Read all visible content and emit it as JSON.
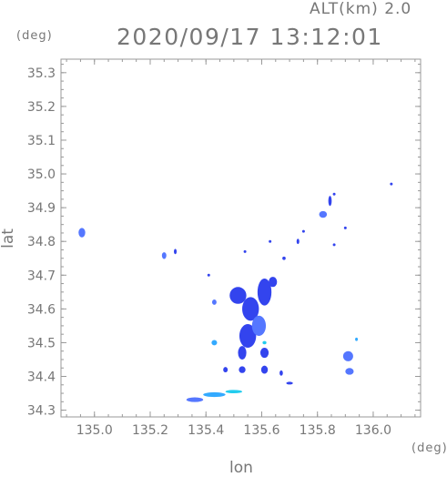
{
  "header": {
    "altitude_label": "ALT(km) 2.0",
    "lat_unit": "(deg)",
    "timestamp": "2020/09/17 13:12:01",
    "lon_unit": "(deg)"
  },
  "axes": {
    "xlabel": "lon",
    "ylabel": "lat",
    "xlim": [
      134.88,
      136.17
    ],
    "ylim": [
      34.28,
      35.34
    ],
    "x_ticks": [
      "135.0",
      "135.2",
      "135.4",
      "135.6",
      "135.8",
      "136.0"
    ],
    "y_ticks": [
      "34.3",
      "34.4",
      "34.5",
      "34.6",
      "34.7",
      "34.8",
      "34.9",
      "35.0",
      "35.1",
      "35.2",
      "35.3"
    ]
  },
  "colors": {
    "frame": "#999999",
    "echo_strong": "#3344ee",
    "echo_medium": "#5577ff",
    "echo_light": "#33aaff",
    "echo_cyan": "#22ccee"
  },
  "chart_data": {
    "type": "scatter",
    "title": "2020/09/17 13:12:01",
    "xlabel": "lon",
    "ylabel": "lat",
    "xlim": [
      134.88,
      136.17
    ],
    "ylim": [
      34.28,
      35.34
    ],
    "grid": false,
    "echo_cells": [
      {
        "lon": 134.955,
        "lat": 34.826,
        "rlon": 0.012,
        "rlat": 0.014,
        "level": "medium"
      },
      {
        "lon": 135.25,
        "lat": 34.758,
        "rlon": 0.008,
        "rlat": 0.01,
        "level": "medium"
      },
      {
        "lon": 135.29,
        "lat": 34.77,
        "rlon": 0.005,
        "rlat": 0.008,
        "level": "strong"
      },
      {
        "lon": 135.41,
        "lat": 34.7,
        "rlon": 0.003,
        "rlat": 0.003,
        "level": "strong"
      },
      {
        "lon": 135.43,
        "lat": 34.62,
        "rlon": 0.008,
        "rlat": 0.008,
        "level": "medium"
      },
      {
        "lon": 135.43,
        "lat": 34.5,
        "rlon": 0.01,
        "rlat": 0.008,
        "level": "light"
      },
      {
        "lon": 135.515,
        "lat": 34.64,
        "rlon": 0.03,
        "rlat": 0.025,
        "level": "strong"
      },
      {
        "lon": 135.56,
        "lat": 34.6,
        "rlon": 0.03,
        "rlat": 0.035,
        "level": "strong"
      },
      {
        "lon": 135.61,
        "lat": 34.65,
        "rlon": 0.025,
        "rlat": 0.04,
        "level": "strong"
      },
      {
        "lon": 135.64,
        "lat": 34.68,
        "rlon": 0.015,
        "rlat": 0.015,
        "level": "strong"
      },
      {
        "lon": 135.55,
        "lat": 34.52,
        "rlon": 0.03,
        "rlat": 0.035,
        "level": "strong"
      },
      {
        "lon": 135.59,
        "lat": 34.55,
        "rlon": 0.025,
        "rlat": 0.03,
        "level": "medium"
      },
      {
        "lon": 135.53,
        "lat": 34.47,
        "rlon": 0.015,
        "rlat": 0.02,
        "level": "strong"
      },
      {
        "lon": 135.61,
        "lat": 34.47,
        "rlon": 0.015,
        "rlat": 0.015,
        "level": "strong"
      },
      {
        "lon": 135.61,
        "lat": 34.5,
        "rlon": 0.007,
        "rlat": 0.005,
        "level": "cyan"
      },
      {
        "lon": 135.47,
        "lat": 34.42,
        "rlon": 0.008,
        "rlat": 0.008,
        "level": "strong"
      },
      {
        "lon": 135.53,
        "lat": 34.42,
        "rlon": 0.012,
        "rlat": 0.01,
        "level": "strong"
      },
      {
        "lon": 135.61,
        "lat": 34.42,
        "rlon": 0.012,
        "rlat": 0.012,
        "level": "strong"
      },
      {
        "lon": 135.67,
        "lat": 34.41,
        "rlon": 0.006,
        "rlat": 0.008,
        "level": "strong"
      },
      {
        "lon": 135.7,
        "lat": 34.38,
        "rlon": 0.012,
        "rlat": 0.004,
        "level": "strong"
      },
      {
        "lon": 135.54,
        "lat": 34.77,
        "rlon": 0.003,
        "rlat": 0.004,
        "level": "strong"
      },
      {
        "lon": 135.68,
        "lat": 34.75,
        "rlon": 0.006,
        "rlat": 0.005,
        "level": "strong"
      },
      {
        "lon": 135.63,
        "lat": 34.8,
        "rlon": 0.003,
        "rlat": 0.003,
        "level": "strong"
      },
      {
        "lon": 135.73,
        "lat": 34.8,
        "rlon": 0.004,
        "rlat": 0.008,
        "level": "strong"
      },
      {
        "lon": 135.75,
        "lat": 34.83,
        "rlon": 0.003,
        "rlat": 0.004,
        "level": "strong"
      },
      {
        "lon": 135.82,
        "lat": 34.88,
        "rlon": 0.014,
        "rlat": 0.01,
        "level": "medium"
      },
      {
        "lon": 135.845,
        "lat": 34.92,
        "rlon": 0.006,
        "rlat": 0.015,
        "level": "strong"
      },
      {
        "lon": 135.86,
        "lat": 34.94,
        "rlon": 0.003,
        "rlat": 0.004,
        "level": "strong"
      },
      {
        "lon": 135.9,
        "lat": 34.84,
        "rlon": 0.003,
        "rlat": 0.004,
        "level": "strong"
      },
      {
        "lon": 135.86,
        "lat": 34.79,
        "rlon": 0.002,
        "rlat": 0.003,
        "level": "strong"
      },
      {
        "lon": 136.065,
        "lat": 34.97,
        "rlon": 0.003,
        "rlat": 0.003,
        "level": "strong"
      },
      {
        "lon": 135.91,
        "lat": 34.46,
        "rlon": 0.018,
        "rlat": 0.015,
        "level": "medium"
      },
      {
        "lon": 135.915,
        "lat": 34.415,
        "rlon": 0.015,
        "rlat": 0.01,
        "level": "medium"
      },
      {
        "lon": 135.94,
        "lat": 34.51,
        "rlon": 0.004,
        "rlat": 0.005,
        "level": "light"
      },
      {
        "lon": 135.36,
        "lat": 34.331,
        "rlon": 0.03,
        "rlat": 0.007,
        "level": "medium"
      },
      {
        "lon": 135.43,
        "lat": 34.346,
        "rlon": 0.04,
        "rlat": 0.007,
        "level": "light"
      },
      {
        "lon": 135.5,
        "lat": 34.355,
        "rlon": 0.03,
        "rlat": 0.005,
        "level": "cyan"
      }
    ]
  }
}
